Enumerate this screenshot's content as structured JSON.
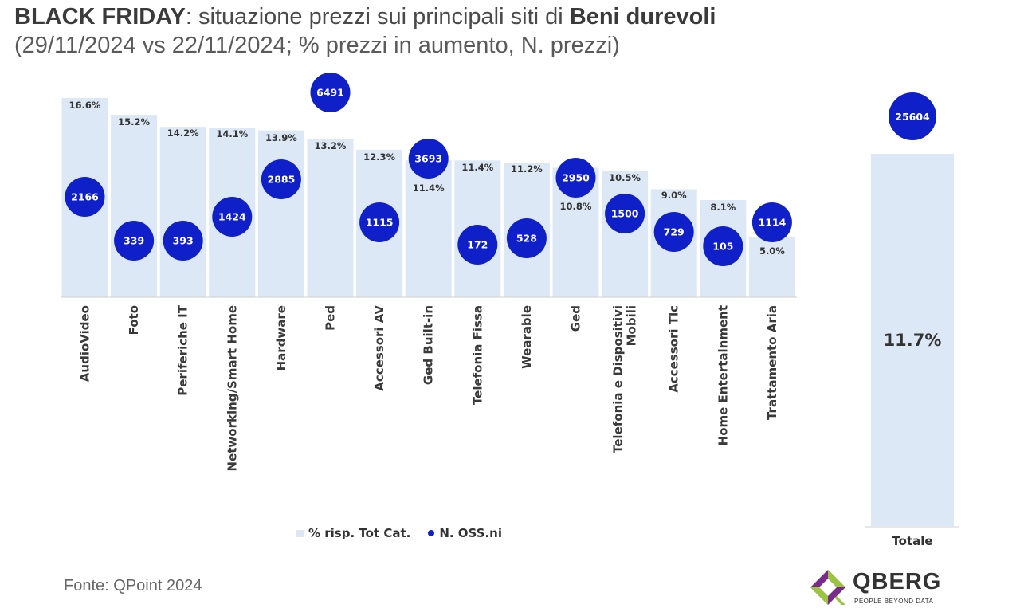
{
  "header": {
    "title_bold_1": "BLACK FRIDAY",
    "title_mid": ": situazione prezzi sui principali siti di ",
    "title_bold_2": "Beni durevoli",
    "subtitle": "(29/11/2024 vs 22/11/2024; % prezzi in aumento, N. prezzi)"
  },
  "chart_data": {
    "type": "bar",
    "categories": [
      "AudioVideo",
      "Foto",
      "Periferiche IT",
      "Networking/Smart Home",
      "Hardware",
      "Ped",
      "Accessori AV",
      "Ged Built-in",
      "Telefonia Fissa",
      "Wearable",
      "Ged",
      "Telefonia e Dispositivi Mobili",
      "Accessori Tlc",
      "Home Entertainment",
      "Trattamento Aria"
    ],
    "series": [
      {
        "name": "% risp. Tot Cat.",
        "values": [
          16.6,
          15.2,
          14.2,
          14.1,
          13.9,
          13.2,
          12.3,
          11.4,
          11.4,
          11.2,
          10.8,
          10.5,
          9.0,
          8.1,
          5.0
        ],
        "labels": [
          "16.6%",
          "15.2%",
          "14.2%",
          "14.1%",
          "13.9%",
          "13.2%",
          "12.3%",
          "11.4%",
          "11.4%",
          "11.2%",
          "10.8%",
          "10.5%",
          "9.0%",
          "8.1%",
          "5.0%"
        ]
      },
      {
        "name": "N. OSS.ni",
        "values": [
          2166,
          339,
          393,
          1424,
          2885,
          6491,
          1115,
          3693,
          172,
          528,
          2950,
          1500,
          729,
          105,
          1114
        ],
        "labels": [
          "2166",
          "339",
          "393",
          "1424",
          "2885",
          "6491",
          "1115",
          "3693",
          "172",
          "528",
          "2950",
          "1500",
          "729",
          "105",
          "1114"
        ]
      }
    ],
    "ylim": [
      0,
      18
    ],
    "legend_position": "bottom",
    "colors": {
      "bar": "#dce8f5",
      "bubble": "#1020c8"
    },
    "total": {
      "category": "Totale",
      "value": 11.7,
      "value_label": "11.7%",
      "n": 25604,
      "n_label": "25604"
    }
  },
  "legend": {
    "bar_label": "% risp. Tot Cat.",
    "dot_label": "N. OSS.ni"
  },
  "footer": {
    "source": "Fonte: QPoint 2024"
  },
  "logo": {
    "name": "QBERG",
    "tagline": "PEOPLE BEYOND DATA"
  }
}
